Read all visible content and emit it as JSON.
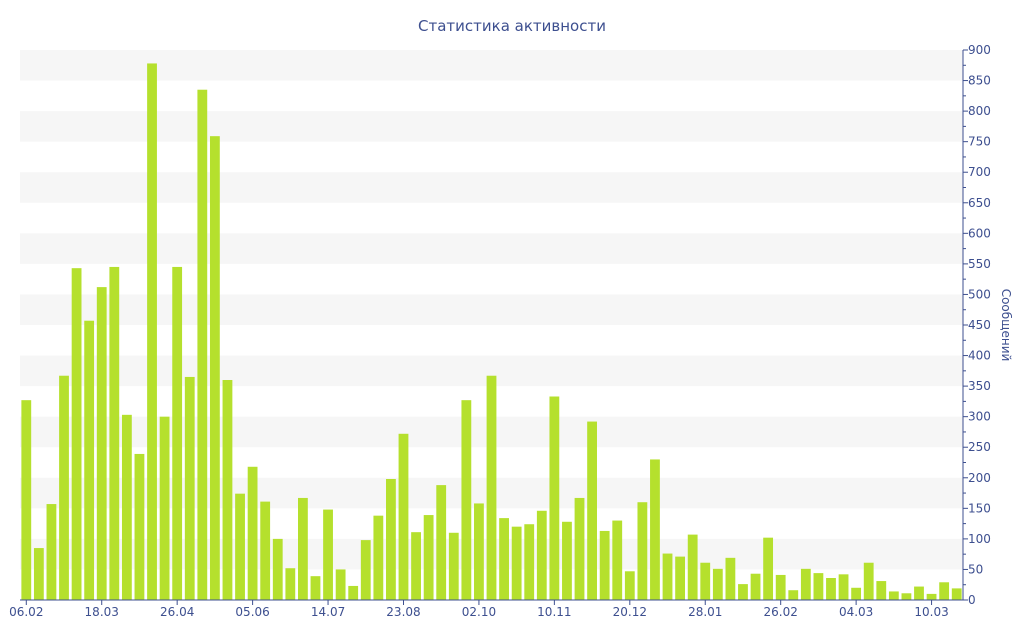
{
  "chart_data": {
    "type": "bar",
    "title": "Статистика активности",
    "xlabel": "",
    "ylabel": "Сообщений",
    "y_axis_side": "right",
    "ylim": [
      0,
      900
    ],
    "ytick_step": 50,
    "grid": "alternating horizontal bands",
    "bar_color": "#b5e02d",
    "band_color": "#f6f6f6",
    "text_color": "#3d4f8f",
    "axis_color": "#3d4f8f",
    "xtick_labels": [
      {
        "label": "06.02",
        "index": 0
      },
      {
        "label": "18.03",
        "index": 6
      },
      {
        "label": "26.04",
        "index": 12
      },
      {
        "label": "05.06",
        "index": 18
      },
      {
        "label": "14.07",
        "index": 24
      },
      {
        "label": "23.08",
        "index": 30
      },
      {
        "label": "02.10",
        "index": 36
      },
      {
        "label": "10.11",
        "index": 42
      },
      {
        "label": "20.12",
        "index": 48
      },
      {
        "label": "28.01",
        "index": 54
      },
      {
        "label": "26.02",
        "index": 60
      },
      {
        "label": "04.03",
        "index": 66
      },
      {
        "label": "10.03",
        "index": 72
      }
    ],
    "values": [
      327,
      85,
      157,
      367,
      543,
      457,
      512,
      545,
      303,
      239,
      878,
      300,
      545,
      365,
      835,
      759,
      360,
      174,
      218,
      161,
      100,
      52,
      167,
      39,
      148,
      50,
      23,
      98,
      138,
      198,
      272,
      111,
      139,
      188,
      110,
      327,
      158,
      367,
      134,
      120,
      124,
      146,
      333,
      128,
      167,
      292,
      113,
      130,
      47,
      160,
      230,
      76,
      71,
      107,
      61,
      51,
      69,
      26,
      43,
      102,
      41,
      16,
      51,
      44,
      36,
      42,
      20,
      61,
      31,
      14,
      11,
      22,
      10,
      29,
      19
    ]
  }
}
